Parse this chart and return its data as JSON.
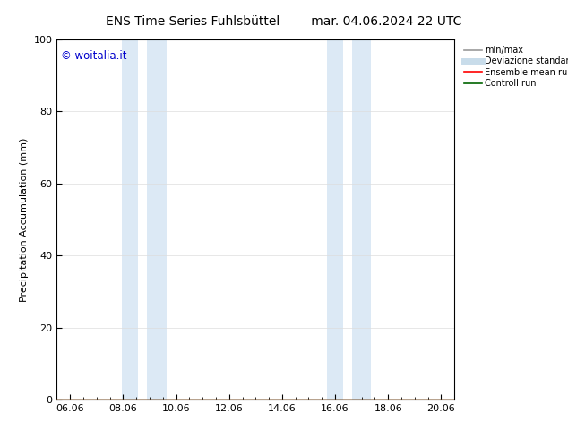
{
  "title_left": "ENS Time Series Fuhlsbüttel",
  "title_right": "mar. 04.06.2024 22 UTC",
  "ylabel": "Precipitation Accumulation (mm)",
  "ylim": [
    0,
    100
  ],
  "yticks": [
    0,
    20,
    40,
    60,
    80,
    100
  ],
  "xtick_labels": [
    "06.06",
    "08.06",
    "10.06",
    "12.06",
    "14.06",
    "16.06",
    "18.06",
    "20.06"
  ],
  "xmin": -0.5,
  "xmax": 14.5,
  "shaded_bands": [
    {
      "x_start": 1.95,
      "x_end": 2.55,
      "color": "#dce9f5"
    },
    {
      "x_start": 2.9,
      "x_end": 3.65,
      "color": "#dce9f5"
    },
    {
      "x_start": 9.7,
      "x_end": 10.3,
      "color": "#dce9f5"
    },
    {
      "x_start": 10.65,
      "x_end": 11.35,
      "color": "#dce9f5"
    }
  ],
  "watermark_text": "© woitalia.it",
  "watermark_color": "#0000cc",
  "legend_entries": [
    {
      "label": "min/max",
      "color": "#999999",
      "lw": 1.2
    },
    {
      "label": "Deviazione standard",
      "color": "#c8dcea",
      "lw": 5
    },
    {
      "label": "Ensemble mean run",
      "color": "#ff0000",
      "lw": 1.2
    },
    {
      "label": "Controll run",
      "color": "#006400",
      "lw": 1.2
    }
  ],
  "bg_color": "#ffffff",
  "title_fontsize": 10,
  "label_fontsize": 8,
  "tick_fontsize": 8
}
